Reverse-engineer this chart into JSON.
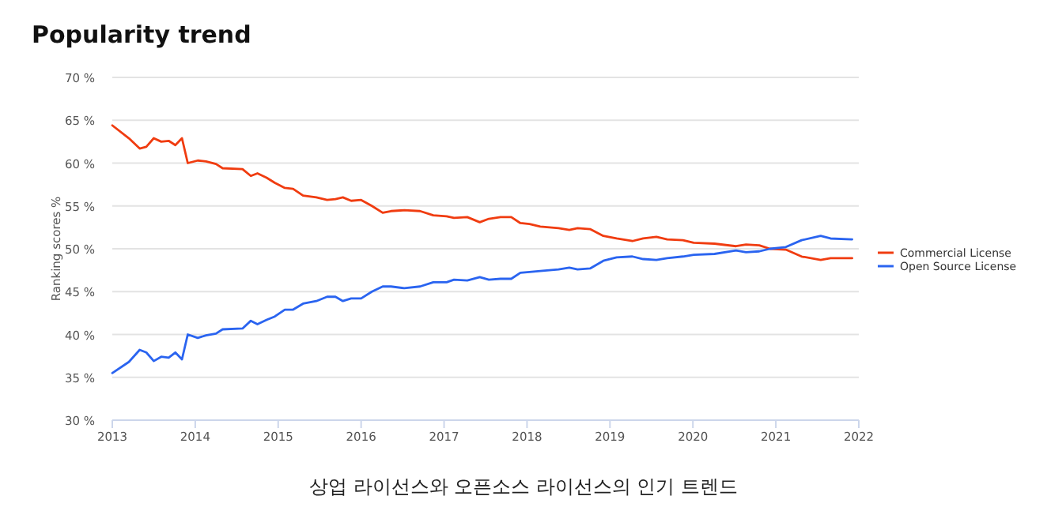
{
  "chart_data": {
    "type": "line",
    "title": "Popularity trend",
    "ylabel": "Ranking scores %",
    "annotations": [
      "상업 라이선스와 오픈소스 라이선스의 인기 트렌드"
    ],
    "x": [
      2013.0,
      2013.2,
      2013.33,
      2013.41,
      2013.5,
      2013.59,
      2013.68,
      2013.76,
      2013.84,
      2013.91,
      2014.03,
      2014.13,
      2014.25,
      2014.33,
      2014.57,
      2014.67,
      2014.75,
      2014.86,
      2014.96,
      2015.08,
      2015.18,
      2015.3,
      2015.46,
      2015.59,
      2015.69,
      2015.78,
      2015.88,
      2016.0,
      2016.13,
      2016.26,
      2016.36,
      2016.52,
      2016.71,
      2016.87,
      2017.03,
      2017.12,
      2017.28,
      2017.43,
      2017.54,
      2017.68,
      2017.81,
      2017.92,
      2018.03,
      2018.16,
      2018.38,
      2018.51,
      2018.61,
      2018.76,
      2018.92,
      2019.08,
      2019.27,
      2019.4,
      2019.56,
      2019.69,
      2019.88,
      2020.01,
      2020.26,
      2020.52,
      2020.64,
      2020.8,
      2020.93,
      2021.12,
      2021.31,
      2021.54,
      2021.66,
      2021.92
    ],
    "series": [
      {
        "name": "Commercial License",
        "color": "#f03c10",
        "values": [
          64.4,
          62.9,
          61.7,
          61.9,
          62.9,
          62.5,
          62.6,
          62.1,
          62.9,
          60.0,
          60.3,
          60.2,
          59.9,
          59.4,
          59.3,
          58.5,
          58.8,
          58.3,
          57.7,
          57.1,
          57.0,
          56.2,
          56.0,
          55.7,
          55.8,
          56.0,
          55.6,
          55.7,
          55.0,
          54.2,
          54.4,
          54.5,
          54.4,
          53.9,
          53.8,
          53.6,
          53.7,
          53.1,
          53.5,
          53.7,
          53.7,
          53.0,
          52.9,
          52.6,
          52.4,
          52.2,
          52.4,
          52.3,
          51.5,
          51.2,
          50.9,
          51.2,
          51.4,
          51.1,
          51.0,
          50.7,
          50.6,
          50.3,
          50.5,
          50.4,
          50.0,
          49.9,
          49.1,
          48.7,
          48.9,
          48.9
        ]
      },
      {
        "name": "Open Source License",
        "color": "#2a64f0",
        "values": [
          35.5,
          36.8,
          38.2,
          37.9,
          36.9,
          37.4,
          37.3,
          37.9,
          37.1,
          40.0,
          39.6,
          39.9,
          40.1,
          40.6,
          40.7,
          41.6,
          41.2,
          41.7,
          42.1,
          42.9,
          42.9,
          43.6,
          43.9,
          44.4,
          44.4,
          43.9,
          44.2,
          44.2,
          45.0,
          45.6,
          45.6,
          45.4,
          45.6,
          46.1,
          46.1,
          46.4,
          46.3,
          46.7,
          46.4,
          46.5,
          46.5,
          47.2,
          47.3,
          47.4,
          47.6,
          47.8,
          47.6,
          47.7,
          48.6,
          49.0,
          49.1,
          48.8,
          48.7,
          48.9,
          49.1,
          49.3,
          49.4,
          49.8,
          49.6,
          49.7,
          50.0,
          50.2,
          51.0,
          51.5,
          51.2,
          51.1
        ]
      }
    ],
    "xlim": [
      2013,
      2022
    ],
    "xticks": [
      2013,
      2014,
      2015,
      2016,
      2017,
      2018,
      2019,
      2020,
      2021,
      2022
    ],
    "ylim": [
      30,
      70
    ],
    "yticks": [
      {
        "value": 30,
        "label": "30 %"
      },
      {
        "value": 35,
        "label": "35 %"
      },
      {
        "value": 40,
        "label": "40 %"
      },
      {
        "value": 45,
        "label": "45 %"
      },
      {
        "value": 50,
        "label": "50 %"
      },
      {
        "value": 55,
        "label": "55 %"
      },
      {
        "value": 60,
        "label": "60 %"
      },
      {
        "value": 65,
        "label": "65 %"
      },
      {
        "value": 70,
        "label": "70 %"
      }
    ],
    "grid": "y",
    "legend": "right"
  }
}
